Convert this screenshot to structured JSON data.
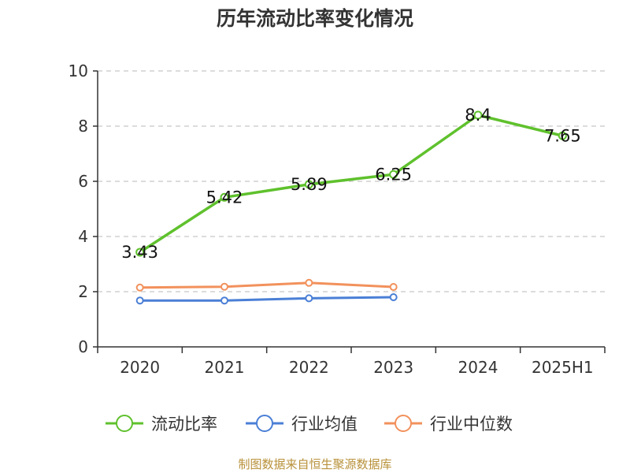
{
  "chart_data": {
    "type": "line",
    "title": "历年流动比率变化情况",
    "categories": [
      "2020",
      "2021",
      "2022",
      "2023",
      "2024",
      "2025H1"
    ],
    "ylim": [
      0,
      10
    ],
    "yticks": [
      "0",
      "2",
      "4",
      "6",
      "8",
      "10"
    ],
    "grid": true,
    "legend_position": "bottom",
    "series": [
      {
        "name": "流动比率",
        "color": "#5fc12d",
        "values": [
          3.43,
          5.42,
          5.89,
          6.25,
          8.4,
          7.65
        ],
        "labels": [
          "3.43",
          "5.42",
          "5.89",
          "6.25",
          "8.4",
          "7.65"
        ]
      },
      {
        "name": "行业均值",
        "color": "#4a7fd6",
        "values": [
          1.68,
          1.68,
          1.76,
          1.8,
          null,
          null
        ]
      },
      {
        "name": "行业中位数",
        "color": "#f2915c",
        "values": [
          2.15,
          2.18,
          2.32,
          2.17,
          null,
          null
        ]
      }
    ]
  },
  "footer": {
    "source": "制图数据来自恒生聚源数据库"
  }
}
